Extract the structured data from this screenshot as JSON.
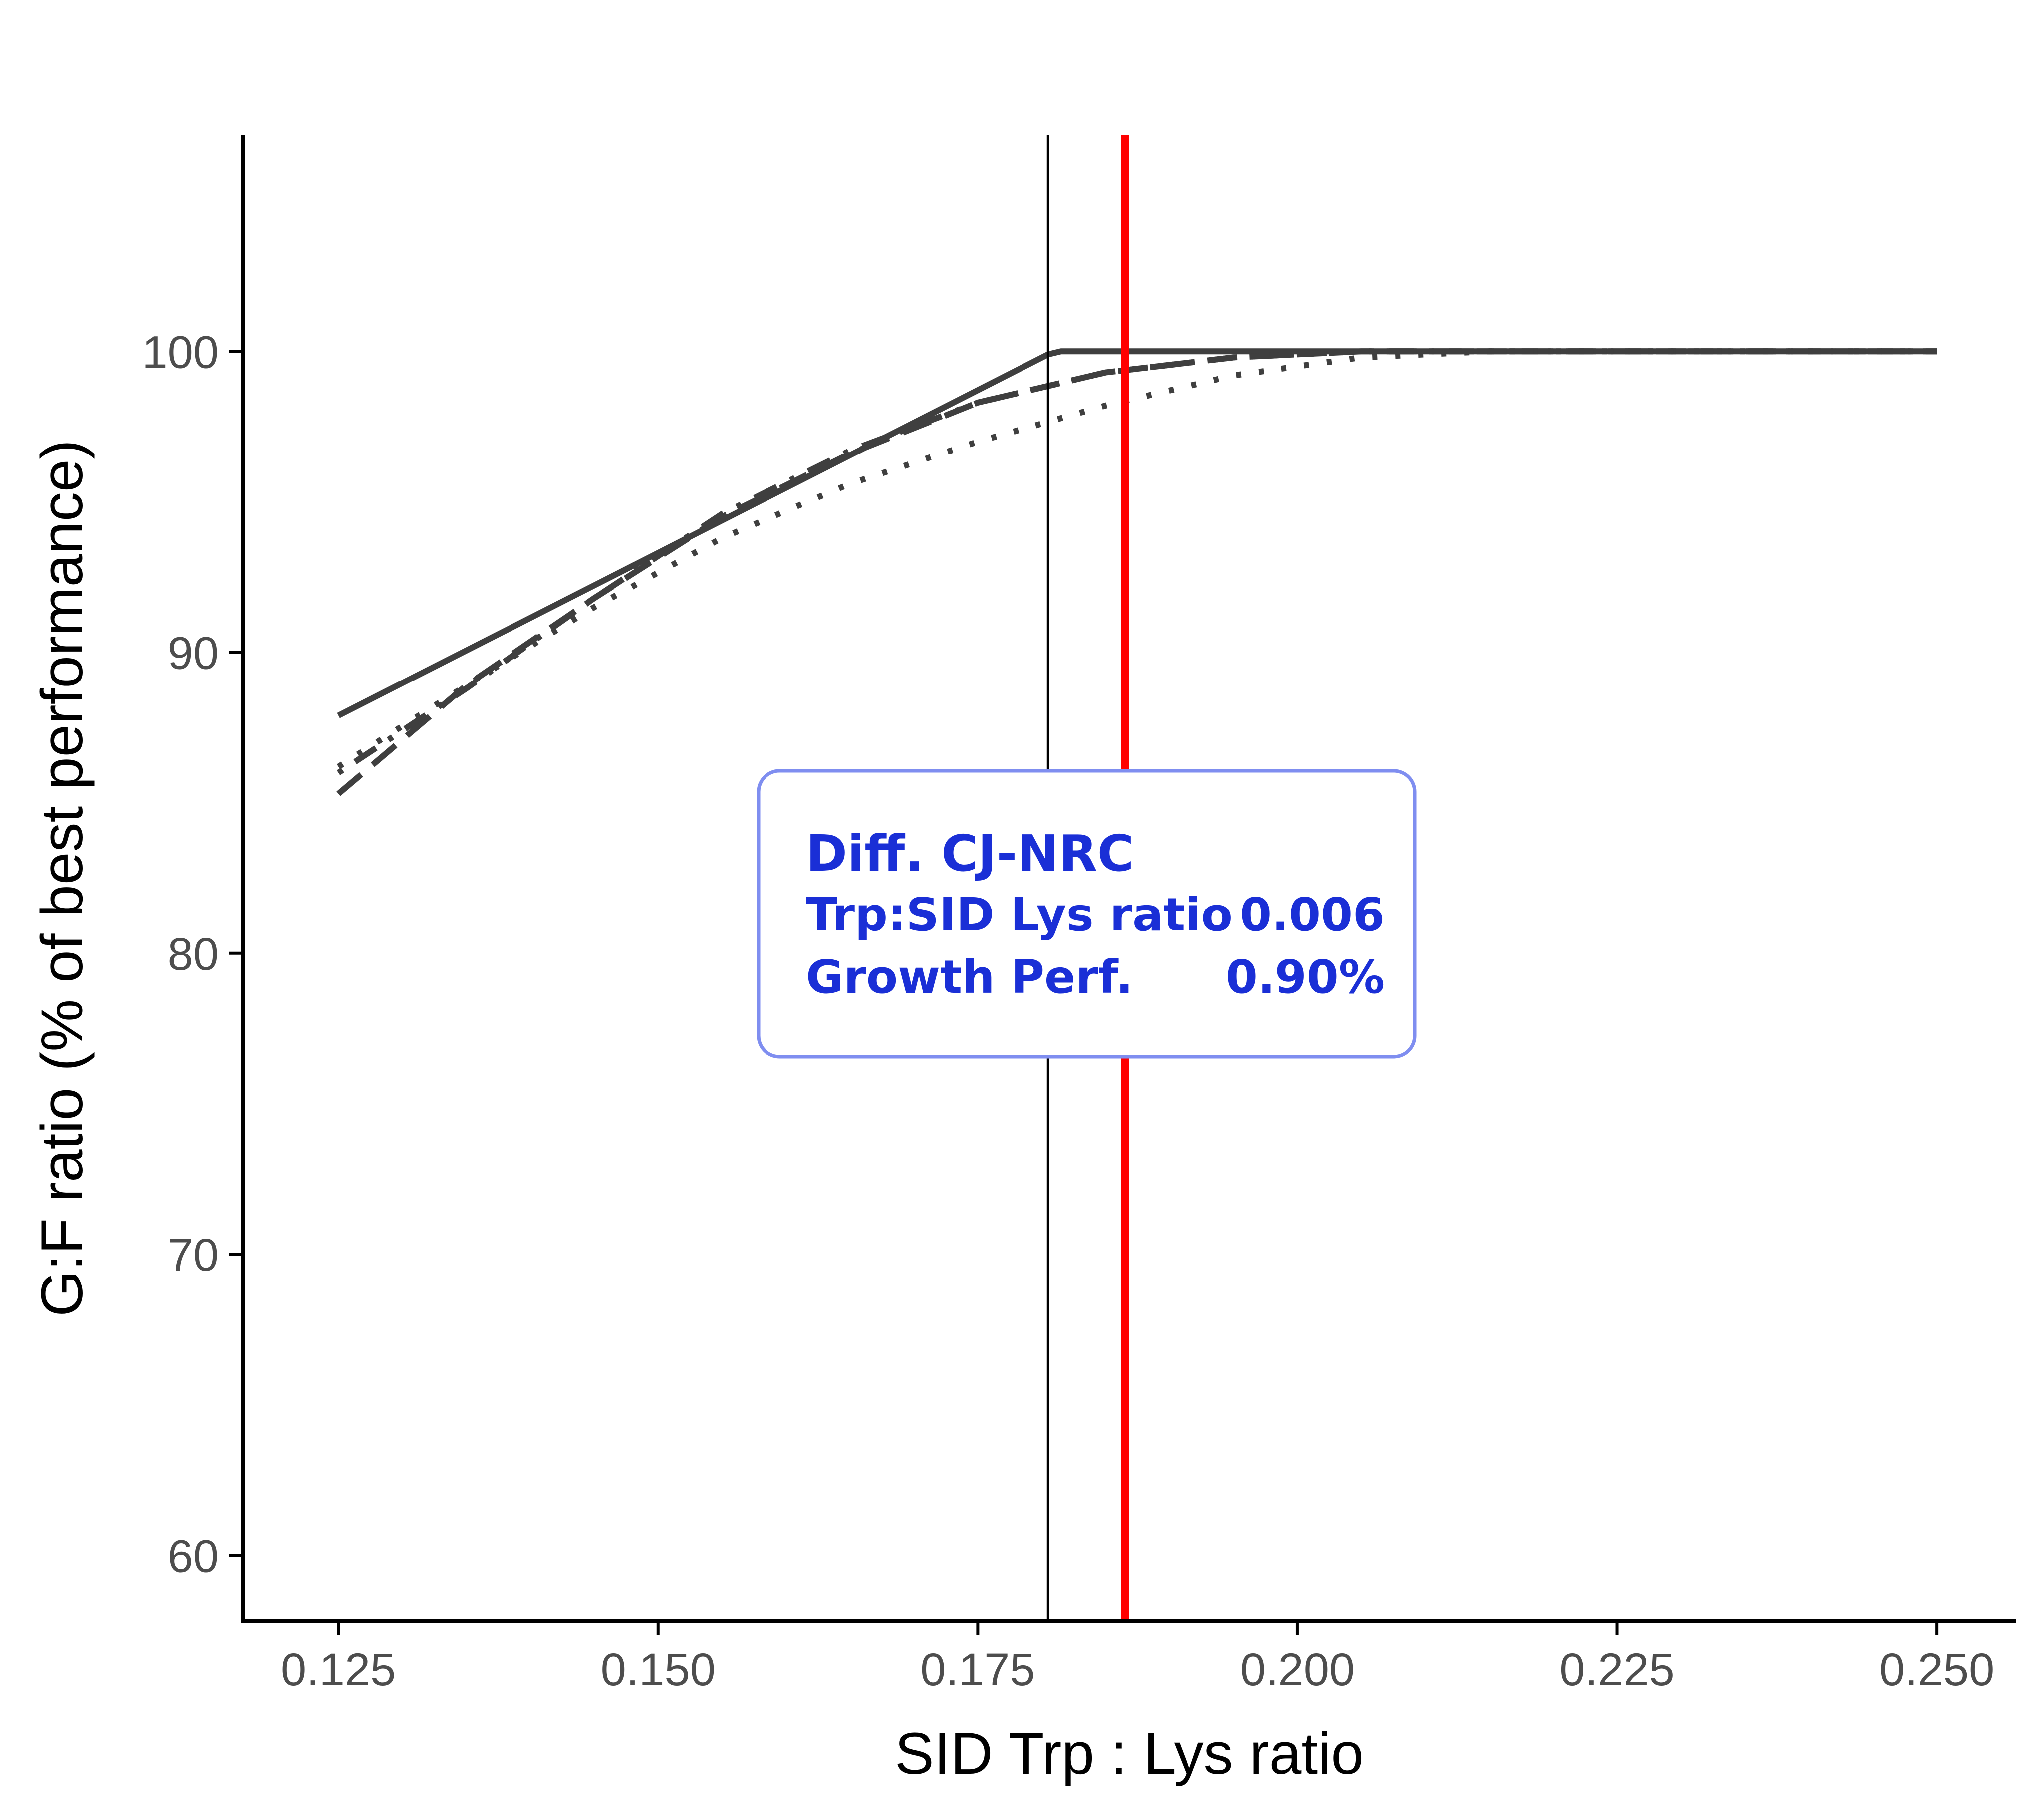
{
  "chart_data": {
    "type": "line",
    "title": "",
    "xlabel": "SID Trp : Lys ratio",
    "ylabel": "G:F ratio (% of best performance)",
    "xlim": [
      0.1175,
      0.2562
    ],
    "ylim": [
      57.8,
      107.2
    ],
    "x_ticks": [
      0.125,
      0.15,
      0.175,
      0.2,
      0.225,
      0.25
    ],
    "x_tick_labels": [
      "0.125",
      "0.150",
      "0.175",
      "0.200",
      "0.225",
      "0.250"
    ],
    "y_ticks": [
      60,
      70,
      80,
      90,
      100
    ],
    "y_tick_labels": [
      "60",
      "70",
      "80",
      "90",
      "100"
    ],
    "grid": false,
    "legend": "none",
    "series": [
      {
        "style": "solid",
        "color": "#3f3f3f",
        "points": [
          [
            0.125,
            87.9
          ],
          [
            0.1805,
            99.9
          ],
          [
            0.1815,
            100.0
          ],
          [
            0.25,
            100.0
          ]
        ]
      },
      {
        "style": "dashed",
        "color": "#3f3f3f",
        "points": [
          [
            0.125,
            85.3
          ],
          [
            0.135,
            88.9
          ],
          [
            0.145,
            91.8
          ],
          [
            0.155,
            94.5
          ],
          [
            0.165,
            96.6
          ],
          [
            0.175,
            98.3
          ],
          [
            0.185,
            99.3
          ],
          [
            0.195,
            99.8
          ],
          [
            0.205,
            100.0
          ],
          [
            0.25,
            100.0
          ]
        ]
      },
      {
        "style": "dotted",
        "color": "#3f3f3f",
        "points": [
          [
            0.125,
            86.2
          ],
          [
            0.135,
            88.9
          ],
          [
            0.145,
            91.5
          ],
          [
            0.155,
            93.8
          ],
          [
            0.165,
            95.6
          ],
          [
            0.175,
            97.0
          ],
          [
            0.185,
            98.2
          ],
          [
            0.195,
            99.2
          ],
          [
            0.205,
            99.8
          ],
          [
            0.215,
            100.0
          ],
          [
            0.25,
            100.0
          ]
        ]
      },
      {
        "style": "dotdash",
        "color": "#3f3f3f",
        "points": [
          [
            0.125,
            86.0
          ],
          [
            0.135,
            88.8
          ],
          [
            0.145,
            91.8
          ],
          [
            0.155,
            94.6
          ],
          [
            0.165,
            96.7
          ],
          [
            0.175,
            98.3
          ],
          [
            0.185,
            99.3
          ],
          [
            0.195,
            99.8
          ],
          [
            0.205,
            100.0
          ],
          [
            0.25,
            100.0
          ]
        ]
      }
    ],
    "vlines": [
      {
        "x": 0.1805,
        "color": "#000000",
        "style": "thin"
      },
      {
        "x": 0.1865,
        "color": "#ff0000",
        "style": "thick"
      }
    ],
    "annotation": {
      "title": "Diff. CJ-NRC",
      "rows": [
        {
          "label": "Trp:SID Lys ratio",
          "value": "0.006"
        },
        {
          "label": "Growth Perf.",
          "value": "0.90%"
        }
      ],
      "text_color": "#1a2fd6",
      "border_color": "#7f8ef0"
    }
  }
}
